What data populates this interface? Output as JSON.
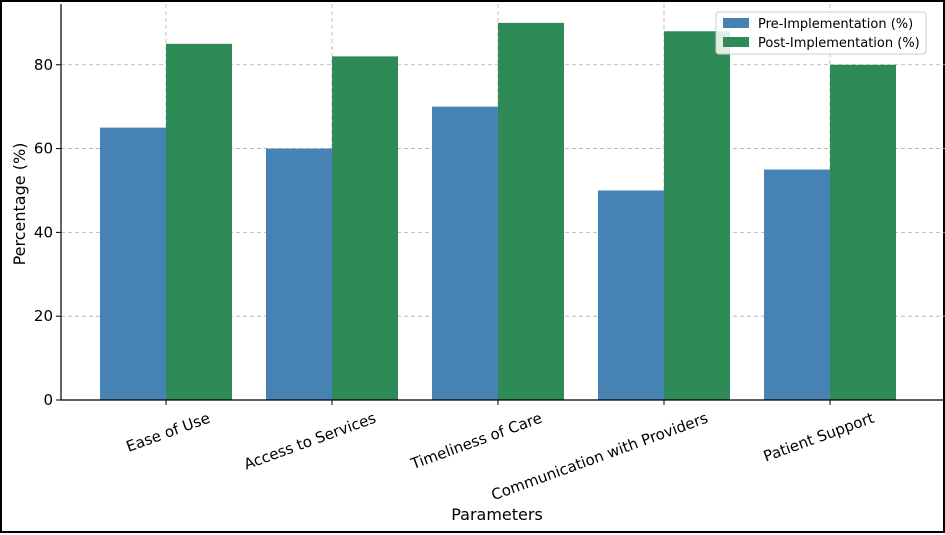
{
  "chart_data": {
    "type": "bar",
    "categories": [
      "Ease of Use",
      "Access to Services",
      "Timeliness of Care",
      "Communication with Providers",
      "Patient Support"
    ],
    "series": [
      {
        "name": "Pre-Implementation (%)",
        "values": [
          65,
          60,
          70,
          50,
          55
        ],
        "color": "#4682b4"
      },
      {
        "name": "Post-Implementation (%)",
        "values": [
          85,
          82,
          90,
          88,
          80
        ],
        "color": "#2e8b57"
      }
    ],
    "title": "",
    "xlabel": "Parameters",
    "ylabel": "Percentage (%)",
    "ylim": [
      0,
      94.5
    ],
    "yticks": [
      0,
      20,
      40,
      60,
      80
    ],
    "grid": true,
    "legend_position": "top-right"
  }
}
